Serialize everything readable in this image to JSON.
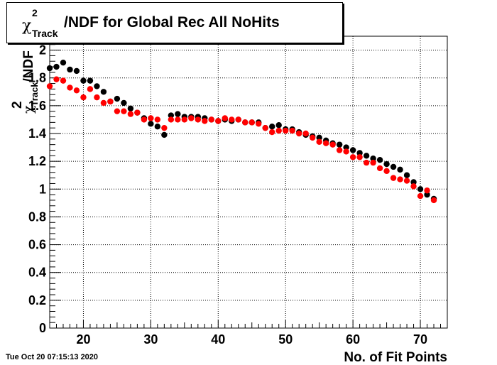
{
  "chart_data": {
    "type": "scatter",
    "title": "χ²_Track/NDF for Global Rec All NoHits",
    "title_parts": {
      "chi": "χ",
      "sup": "2",
      "sub": "Track",
      "rest": "/NDF for Global Rec All NoHits"
    },
    "xlabel": "No. of Fit Points",
    "ylabel": "χ²_Track/NDF",
    "ylabel_parts": {
      "chi": "χ",
      "sup": "2",
      "sub": "Track",
      "rest": "/NDF"
    },
    "xlim": [
      15,
      74
    ],
    "ylim": [
      0,
      2.1
    ],
    "x_ticks": [
      20,
      30,
      40,
      50,
      60,
      70
    ],
    "y_ticks": [
      "0",
      "0.2",
      "0.4",
      "0.6",
      "0.8",
      "1",
      "1.2",
      "1.4",
      "1.6",
      "1.8",
      "2"
    ],
    "y_tick_values": [
      0,
      0.2,
      0.4,
      0.6,
      0.8,
      1.0,
      1.2,
      1.4,
      1.6,
      1.8,
      2.0
    ],
    "grid": true,
    "series": [
      {
        "color": "#000000",
        "x": [
          15,
          16,
          17,
          18,
          19,
          20,
          21,
          22,
          23,
          24,
          25,
          26,
          27,
          28,
          29,
          30,
          31,
          32,
          33,
          34,
          35,
          36,
          37,
          38,
          39,
          40,
          41,
          42,
          43,
          44,
          45,
          46,
          47,
          48,
          49,
          50,
          51,
          52,
          53,
          54,
          55,
          56,
          57,
          58,
          59,
          60,
          61,
          62,
          63,
          64,
          65,
          66,
          67,
          68,
          69,
          70,
          71,
          72
        ],
        "y": [
          1.87,
          1.88,
          1.91,
          1.86,
          1.85,
          1.78,
          1.78,
          1.74,
          1.7,
          1.63,
          1.65,
          1.62,
          1.58,
          1.55,
          1.51,
          1.47,
          1.45,
          1.39,
          1.53,
          1.54,
          1.52,
          1.52,
          1.52,
          1.51,
          1.5,
          1.49,
          1.5,
          1.49,
          1.5,
          1.48,
          1.48,
          1.48,
          1.44,
          1.45,
          1.46,
          1.43,
          1.43,
          1.41,
          1.39,
          1.38,
          1.37,
          1.35,
          1.33,
          1.32,
          1.3,
          1.28,
          1.26,
          1.24,
          1.22,
          1.21,
          1.18,
          1.16,
          1.14,
          1.1,
          1.05,
          1.0,
          0.96,
          0.93
        ]
      },
      {
        "color": "#ff0000",
        "x": [
          15,
          16,
          17,
          18,
          19,
          20,
          21,
          22,
          23,
          24,
          25,
          26,
          27,
          28,
          29,
          30,
          31,
          32,
          33,
          34,
          35,
          36,
          37,
          38,
          39,
          40,
          41,
          42,
          43,
          44,
          45,
          46,
          47,
          48,
          49,
          50,
          51,
          52,
          53,
          54,
          55,
          56,
          57,
          58,
          59,
          60,
          61,
          62,
          63,
          64,
          65,
          66,
          67,
          68,
          69,
          70,
          71,
          72
        ],
        "y": [
          1.74,
          1.79,
          1.78,
          1.73,
          1.71,
          1.66,
          1.72,
          1.66,
          1.62,
          1.63,
          1.56,
          1.56,
          1.54,
          1.55,
          1.5,
          1.51,
          1.5,
          1.44,
          1.5,
          1.5,
          1.5,
          1.51,
          1.5,
          1.49,
          1.5,
          1.49,
          1.51,
          1.5,
          1.5,
          1.48,
          1.48,
          1.47,
          1.44,
          1.41,
          1.42,
          1.42,
          1.42,
          1.4,
          1.4,
          1.37,
          1.34,
          1.33,
          1.32,
          1.28,
          1.27,
          1.23,
          1.23,
          1.19,
          1.19,
          1.15,
          1.13,
          1.08,
          1.07,
          1.06,
          1.02,
          0.95,
          0.99,
          0.92
        ]
      }
    ]
  },
  "timestamp": "Tue Oct 20 07:15:13 2020"
}
